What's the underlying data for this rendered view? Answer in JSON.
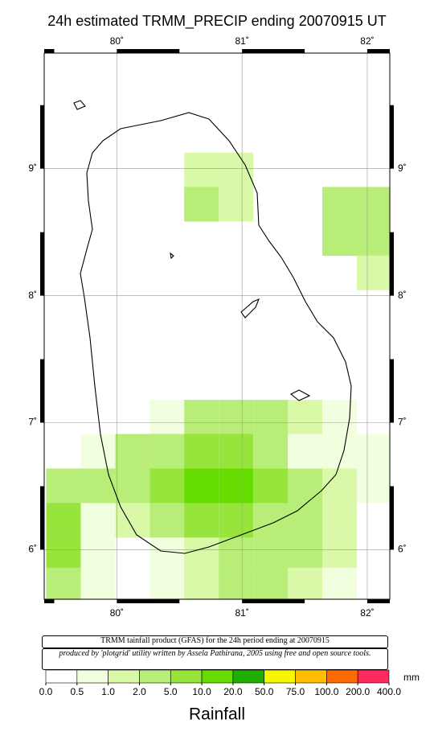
{
  "chart_data": {
    "type": "map",
    "title": "24h estimated TRMM_PRECIP  ending 20070915 UT",
    "xlim": [
      79.42,
      82.18
    ],
    "ylim": [
      5.61,
      9.91
    ],
    "xticks": [
      {
        "value": 80,
        "label": "80˚"
      },
      {
        "value": 81,
        "label": "81˚"
      },
      {
        "value": 82,
        "label": "82˚"
      }
    ],
    "yticks": [
      {
        "value": 6,
        "label": "6˚"
      },
      {
        "value": 7,
        "label": "7˚"
      },
      {
        "value": 8,
        "label": "8˚"
      },
      {
        "value": 9,
        "label": "9˚"
      }
    ],
    "grid": true,
    "cells": [
      [
        80.676,
        8.99,
        1.5
      ],
      [
        80.952,
        8.99,
        1.5
      ],
      [
        80.676,
        8.72,
        2
      ],
      [
        80.952,
        8.72,
        1.5
      ],
      [
        81.779,
        8.72,
        2
      ],
      [
        82.054,
        8.72,
        3
      ],
      [
        81.779,
        8.45,
        2
      ],
      [
        82.054,
        8.45,
        3
      ],
      [
        82.054,
        8.18,
        1.5
      ],
      [
        80.401,
        7.044,
        0.7
      ],
      [
        80.676,
        7.044,
        3
      ],
      [
        80.952,
        7.044,
        3
      ],
      [
        81.228,
        7.044,
        2
      ],
      [
        81.503,
        7.044,
        1.5
      ],
      [
        81.779,
        7.044,
        0.7
      ],
      [
        79.85,
        6.775,
        0.7
      ],
      [
        80.125,
        6.775,
        2
      ],
      [
        80.401,
        6.775,
        3
      ],
      [
        80.676,
        6.775,
        7
      ],
      [
        80.952,
        6.775,
        7
      ],
      [
        81.228,
        6.775,
        3
      ],
      [
        81.503,
        6.775,
        0.7
      ],
      [
        81.779,
        6.775,
        0.7
      ],
      [
        82.054,
        6.775,
        0.7
      ],
      [
        79.574,
        6.503,
        3
      ],
      [
        79.85,
        6.503,
        2
      ],
      [
        80.125,
        6.503,
        3
      ],
      [
        80.401,
        6.503,
        7
      ],
      [
        80.676,
        6.503,
        15
      ],
      [
        80.952,
        6.503,
        15
      ],
      [
        81.228,
        6.503,
        7
      ],
      [
        81.503,
        6.503,
        3
      ],
      [
        81.779,
        6.503,
        1.5
      ],
      [
        82.054,
        6.503,
        0.7
      ],
      [
        79.574,
        6.231,
        7
      ],
      [
        79.85,
        6.231,
        0.7
      ],
      [
        80.125,
        6.231,
        1.5
      ],
      [
        80.401,
        6.231,
        3
      ],
      [
        80.676,
        6.231,
        7
      ],
      [
        80.952,
        6.231,
        7
      ],
      [
        81.228,
        6.231,
        3
      ],
      [
        81.503,
        6.231,
        2
      ],
      [
        81.779,
        6.231,
        1.5
      ],
      [
        79.574,
        5.959,
        7
      ],
      [
        79.85,
        5.959,
        0.7
      ],
      [
        80.401,
        5.959,
        0.7
      ],
      [
        80.676,
        5.959,
        1.5
      ],
      [
        80.952,
        5.959,
        2
      ],
      [
        81.228,
        5.959,
        2.2
      ],
      [
        81.503,
        5.959,
        2
      ],
      [
        81.779,
        5.959,
        1.5
      ],
      [
        79.574,
        5.722,
        2
      ],
      [
        79.85,
        5.722,
        0.7
      ],
      [
        80.401,
        5.722,
        0.7
      ],
      [
        80.676,
        5.722,
        1.5
      ],
      [
        80.952,
        5.722,
        2
      ],
      [
        81.228,
        5.722,
        2
      ],
      [
        81.503,
        5.722,
        1.5
      ],
      [
        81.779,
        5.722,
        0.7
      ]
    ],
    "notes": [
      "TRMM tainfall product (GFAS) for the 24h period ending at 20070915",
      "produced by 'plotgrid' utility written by Assela Pathirana, 2005 using free and open source tools."
    ],
    "colorbar": {
      "unit": "mm",
      "label": "Rainfall",
      "ticks": [
        {
          "value": 0,
          "label": "0.0"
        },
        {
          "value": 0.5,
          "label": "0.5"
        },
        {
          "value": 1,
          "label": "1.0"
        },
        {
          "value": 2,
          "label": "2.0"
        },
        {
          "value": 5,
          "label": "5.0"
        },
        {
          "value": 10,
          "label": "10.0"
        },
        {
          "value": 20,
          "label": "20.0"
        },
        {
          "value": 50,
          "label": "50.0"
        },
        {
          "value": 75,
          "label": "75.0"
        },
        {
          "value": 100,
          "label": "100.0"
        },
        {
          "value": 200,
          "label": "200.0"
        },
        {
          "value": 400,
          "label": "400.0"
        }
      ],
      "colors": [
        "#ffffff",
        "#f2ffdf",
        "#d9f8a8",
        "#b8ee78",
        "#96e43c",
        "#66dd00",
        "#1fae00",
        "#f6f600",
        "#ffbf00",
        "#ff6a00",
        "#ff2a60"
      ]
    }
  }
}
